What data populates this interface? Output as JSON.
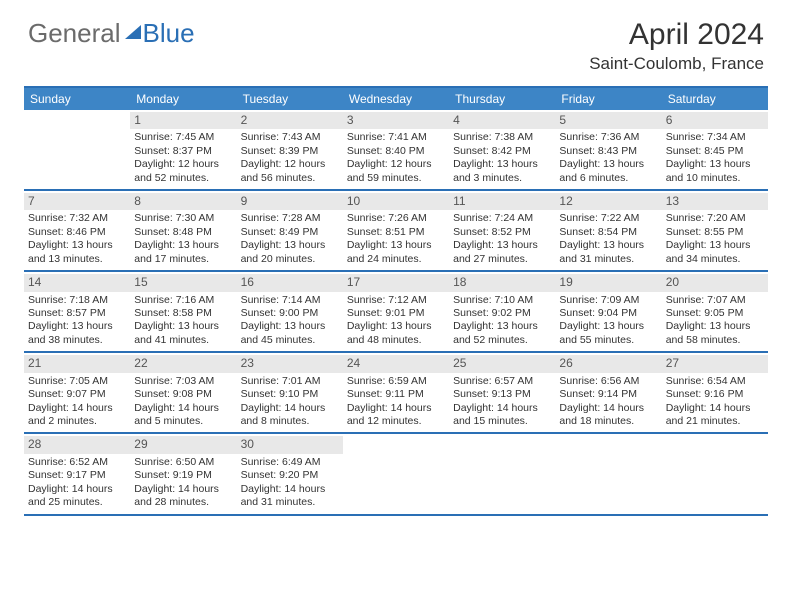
{
  "logo": {
    "part1": "General",
    "part2": "Blue"
  },
  "title": "April 2024",
  "location": "Saint-Coulomb, France",
  "dow": [
    "Sunday",
    "Monday",
    "Tuesday",
    "Wednesday",
    "Thursday",
    "Friday",
    "Saturday"
  ],
  "colors": {
    "accent": "#2a6fb5",
    "header_bg": "#3d85c6",
    "daynum_bg": "#e8e8e8",
    "text": "#333333",
    "logo_gray": "#6b6b6b"
  },
  "weeks": [
    [
      {
        "n": "",
        "sr": "",
        "ss": "",
        "dl": ""
      },
      {
        "n": "1",
        "sr": "Sunrise: 7:45 AM",
        "ss": "Sunset: 8:37 PM",
        "dl": "Daylight: 12 hours and 52 minutes."
      },
      {
        "n": "2",
        "sr": "Sunrise: 7:43 AM",
        "ss": "Sunset: 8:39 PM",
        "dl": "Daylight: 12 hours and 56 minutes."
      },
      {
        "n": "3",
        "sr": "Sunrise: 7:41 AM",
        "ss": "Sunset: 8:40 PM",
        "dl": "Daylight: 12 hours and 59 minutes."
      },
      {
        "n": "4",
        "sr": "Sunrise: 7:38 AM",
        "ss": "Sunset: 8:42 PM",
        "dl": "Daylight: 13 hours and 3 minutes."
      },
      {
        "n": "5",
        "sr": "Sunrise: 7:36 AM",
        "ss": "Sunset: 8:43 PM",
        "dl": "Daylight: 13 hours and 6 minutes."
      },
      {
        "n": "6",
        "sr": "Sunrise: 7:34 AM",
        "ss": "Sunset: 8:45 PM",
        "dl": "Daylight: 13 hours and 10 minutes."
      }
    ],
    [
      {
        "n": "7",
        "sr": "Sunrise: 7:32 AM",
        "ss": "Sunset: 8:46 PM",
        "dl": "Daylight: 13 hours and 13 minutes."
      },
      {
        "n": "8",
        "sr": "Sunrise: 7:30 AM",
        "ss": "Sunset: 8:48 PM",
        "dl": "Daylight: 13 hours and 17 minutes."
      },
      {
        "n": "9",
        "sr": "Sunrise: 7:28 AM",
        "ss": "Sunset: 8:49 PM",
        "dl": "Daylight: 13 hours and 20 minutes."
      },
      {
        "n": "10",
        "sr": "Sunrise: 7:26 AM",
        "ss": "Sunset: 8:51 PM",
        "dl": "Daylight: 13 hours and 24 minutes."
      },
      {
        "n": "11",
        "sr": "Sunrise: 7:24 AM",
        "ss": "Sunset: 8:52 PM",
        "dl": "Daylight: 13 hours and 27 minutes."
      },
      {
        "n": "12",
        "sr": "Sunrise: 7:22 AM",
        "ss": "Sunset: 8:54 PM",
        "dl": "Daylight: 13 hours and 31 minutes."
      },
      {
        "n": "13",
        "sr": "Sunrise: 7:20 AM",
        "ss": "Sunset: 8:55 PM",
        "dl": "Daylight: 13 hours and 34 minutes."
      }
    ],
    [
      {
        "n": "14",
        "sr": "Sunrise: 7:18 AM",
        "ss": "Sunset: 8:57 PM",
        "dl": "Daylight: 13 hours and 38 minutes."
      },
      {
        "n": "15",
        "sr": "Sunrise: 7:16 AM",
        "ss": "Sunset: 8:58 PM",
        "dl": "Daylight: 13 hours and 41 minutes."
      },
      {
        "n": "16",
        "sr": "Sunrise: 7:14 AM",
        "ss": "Sunset: 9:00 PM",
        "dl": "Daylight: 13 hours and 45 minutes."
      },
      {
        "n": "17",
        "sr": "Sunrise: 7:12 AM",
        "ss": "Sunset: 9:01 PM",
        "dl": "Daylight: 13 hours and 48 minutes."
      },
      {
        "n": "18",
        "sr": "Sunrise: 7:10 AM",
        "ss": "Sunset: 9:02 PM",
        "dl": "Daylight: 13 hours and 52 minutes."
      },
      {
        "n": "19",
        "sr": "Sunrise: 7:09 AM",
        "ss": "Sunset: 9:04 PM",
        "dl": "Daylight: 13 hours and 55 minutes."
      },
      {
        "n": "20",
        "sr": "Sunrise: 7:07 AM",
        "ss": "Sunset: 9:05 PM",
        "dl": "Daylight: 13 hours and 58 minutes."
      }
    ],
    [
      {
        "n": "21",
        "sr": "Sunrise: 7:05 AM",
        "ss": "Sunset: 9:07 PM",
        "dl": "Daylight: 14 hours and 2 minutes."
      },
      {
        "n": "22",
        "sr": "Sunrise: 7:03 AM",
        "ss": "Sunset: 9:08 PM",
        "dl": "Daylight: 14 hours and 5 minutes."
      },
      {
        "n": "23",
        "sr": "Sunrise: 7:01 AM",
        "ss": "Sunset: 9:10 PM",
        "dl": "Daylight: 14 hours and 8 minutes."
      },
      {
        "n": "24",
        "sr": "Sunrise: 6:59 AM",
        "ss": "Sunset: 9:11 PM",
        "dl": "Daylight: 14 hours and 12 minutes."
      },
      {
        "n": "25",
        "sr": "Sunrise: 6:57 AM",
        "ss": "Sunset: 9:13 PM",
        "dl": "Daylight: 14 hours and 15 minutes."
      },
      {
        "n": "26",
        "sr": "Sunrise: 6:56 AM",
        "ss": "Sunset: 9:14 PM",
        "dl": "Daylight: 14 hours and 18 minutes."
      },
      {
        "n": "27",
        "sr": "Sunrise: 6:54 AM",
        "ss": "Sunset: 9:16 PM",
        "dl": "Daylight: 14 hours and 21 minutes."
      }
    ],
    [
      {
        "n": "28",
        "sr": "Sunrise: 6:52 AM",
        "ss": "Sunset: 9:17 PM",
        "dl": "Daylight: 14 hours and 25 minutes."
      },
      {
        "n": "29",
        "sr": "Sunrise: 6:50 AM",
        "ss": "Sunset: 9:19 PM",
        "dl": "Daylight: 14 hours and 28 minutes."
      },
      {
        "n": "30",
        "sr": "Sunrise: 6:49 AM",
        "ss": "Sunset: 9:20 PM",
        "dl": "Daylight: 14 hours and 31 minutes."
      },
      {
        "n": "",
        "sr": "",
        "ss": "",
        "dl": ""
      },
      {
        "n": "",
        "sr": "",
        "ss": "",
        "dl": ""
      },
      {
        "n": "",
        "sr": "",
        "ss": "",
        "dl": ""
      },
      {
        "n": "",
        "sr": "",
        "ss": "",
        "dl": ""
      }
    ]
  ]
}
